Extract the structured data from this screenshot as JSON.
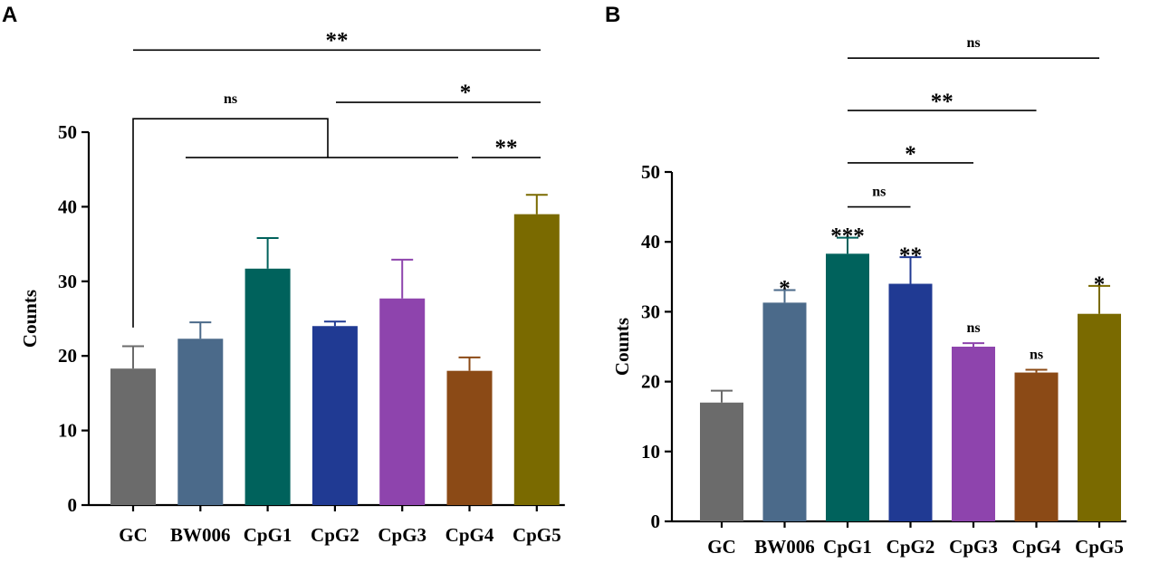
{
  "chart_data": [
    {
      "panel": "A",
      "type": "bar",
      "ylabel": "Counts",
      "ylim": [
        0,
        50
      ],
      "yticks": [
        "0",
        "10",
        "20",
        "30",
        "40",
        "50"
      ],
      "categories": [
        "GC",
        "BW006",
        "CpG1",
        "CpG2",
        "CpG3",
        "CpG4",
        "CpG5"
      ],
      "values": [
        18.3,
        22.3,
        31.7,
        24.0,
        27.7,
        18.0,
        39.0
      ],
      "errors": [
        3.0,
        2.2,
        4.1,
        0.6,
        5.2,
        1.8,
        2.6
      ],
      "colors": [
        "#6b6b6b",
        "#4b6a8a",
        "#00625c",
        "#203a93",
        "#8e44ad",
        "#8b4a16",
        "#7a6a00"
      ],
      "bar_annotations": [
        "",
        "",
        "",
        "",
        "",
        "",
        ""
      ],
      "brackets": [
        {
          "label": "**",
          "from": "GC",
          "to": "CpG5",
          "level": 61
        },
        {
          "label": "*",
          "from": "CpG2",
          "to": "CpG5",
          "level": 54
        },
        {
          "label": "**",
          "from": "CpG4",
          "to": "CpG5",
          "level": 46.6
        },
        {
          "label": "ns",
          "from": "GC",
          "to": "BW006–CpG4 group",
          "level": 51.8
        }
      ]
    },
    {
      "panel": "B",
      "type": "bar",
      "ylabel": "Counts",
      "ylim": [
        0,
        50
      ],
      "yticks": [
        "0",
        "10",
        "20",
        "30",
        "40",
        "50"
      ],
      "categories": [
        "GC",
        "BW006",
        "CpG1",
        "CpG2",
        "CpG3",
        "CpG4",
        "CpG5"
      ],
      "values": [
        17.0,
        31.3,
        38.3,
        34.0,
        25.0,
        21.3,
        29.7
      ],
      "errors": [
        1.7,
        1.8,
        2.3,
        3.8,
        0.5,
        0.4,
        4.0
      ],
      "colors": [
        "#6b6b6b",
        "#4b6a8a",
        "#00625c",
        "#203a93",
        "#8e44ad",
        "#8b4a16",
        "#7a6a00"
      ],
      "bar_annotations": [
        "",
        "*",
        "***",
        "**",
        "ns",
        "ns",
        "*"
      ],
      "brackets": [
        {
          "label": "ns",
          "from": "CpG1",
          "to": "CpG5",
          "level": 66.3
        },
        {
          "label": "**",
          "from": "CpG1",
          "to": "CpG4",
          "level": 58.8
        },
        {
          "label": "*",
          "from": "CpG1",
          "to": "CpG3",
          "level": 51.3
        },
        {
          "label": "ns",
          "from": "CpG1",
          "to": "CpG2",
          "level": 45.0
        }
      ]
    }
  ]
}
